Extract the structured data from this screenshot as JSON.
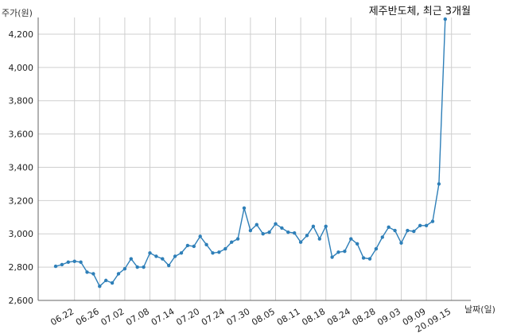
{
  "chart_data": {
    "type": "line",
    "title": "제주반도체, 최근 3개월",
    "ylabel": "주가(원)",
    "xlabel": "날짜(일)",
    "ylim": [
      2600,
      4300
    ],
    "yticks": [
      2600,
      2800,
      3000,
      3200,
      3400,
      3600,
      3800,
      4000,
      4200
    ],
    "ytick_labels": [
      "2,600",
      "2,800",
      "3,000",
      "3,200",
      "3,400",
      "3,600",
      "3,800",
      "4,000",
      "4,200"
    ],
    "xtick_labels": [
      "06.22",
      "06.26",
      "07.02",
      "07.08",
      "07.14",
      "07.20",
      "07.24",
      "07.30",
      "08.05",
      "08.11",
      "08.18",
      "08.24",
      "08.28",
      "09.03",
      "09.09",
      "20.09.15"
    ],
    "xtick_index": [
      3,
      7,
      11,
      15,
      19,
      23,
      27,
      31,
      35,
      39,
      43,
      47,
      51,
      55,
      59,
      63
    ],
    "grid": true,
    "colors": {
      "line": "#2e7fb8",
      "grid": "#cfcfcf",
      "axis": "#666666"
    },
    "series": [
      {
        "values": [
          2805,
          2815,
          2830,
          2835,
          2830,
          2770,
          2760,
          2685,
          2720,
          2705,
          2760,
          2790,
          2850,
          2800,
          2800,
          2885,
          2865,
          2850,
          2810,
          2865,
          2885,
          2930,
          2925,
          2985,
          2935,
          2885,
          2890,
          2910,
          2950,
          2970,
          3155,
          3020,
          3055,
          3000,
          3010,
          3060,
          3035,
          3010,
          3005,
          2950,
          2990,
          3045,
          2970,
          3045,
          2860,
          2890,
          2895,
          2970,
          2940,
          2855,
          2850,
          2910,
          2980,
          3040,
          3020,
          2945,
          3020,
          3015,
          3050,
          3050,
          3075,
          3300,
          4290
        ]
      }
    ]
  }
}
